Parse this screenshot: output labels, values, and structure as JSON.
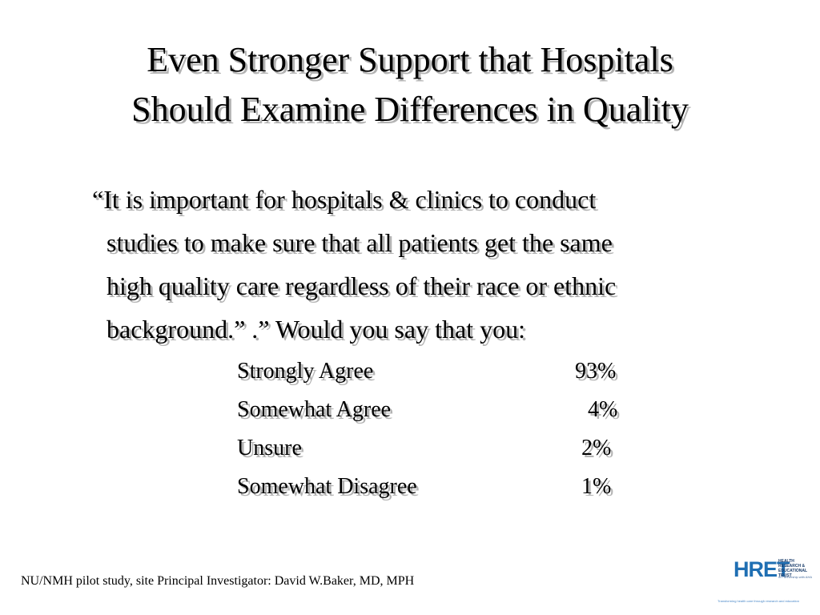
{
  "title": {
    "line1": "Even Stronger Support that Hospitals",
    "line2": "Should Examine Differences in Quality"
  },
  "question": {
    "line1": "“It is important for hospitals & clinics to conduct",
    "line2": "studies to make sure that all patients get the same",
    "line3": "high quality care regardless of their race or ethnic",
    "line4": "background.” .”  Would you say that you:"
  },
  "responses": [
    {
      "label": "Strongly Agree",
      "value": "93%"
    },
    {
      "label": "Somewhat Agree",
      "value": "4%"
    },
    {
      "label": "Unsure",
      "value": "2%"
    },
    {
      "label": "Somewhat Disagree",
      "value": "1%"
    }
  ],
  "footer": {
    "citation": "NU/NMH pilot study, site Principal Investigator:  David W.Baker, MD, MPH"
  },
  "logo": {
    "name": "HRET",
    "tagline": "HEALTH RESEARCH & EDUCATIONAL TRUST",
    "partner": "in Partnership with AHA",
    "slogan": "Transforming health care through research and education",
    "color": "#1f6fb3"
  }
}
